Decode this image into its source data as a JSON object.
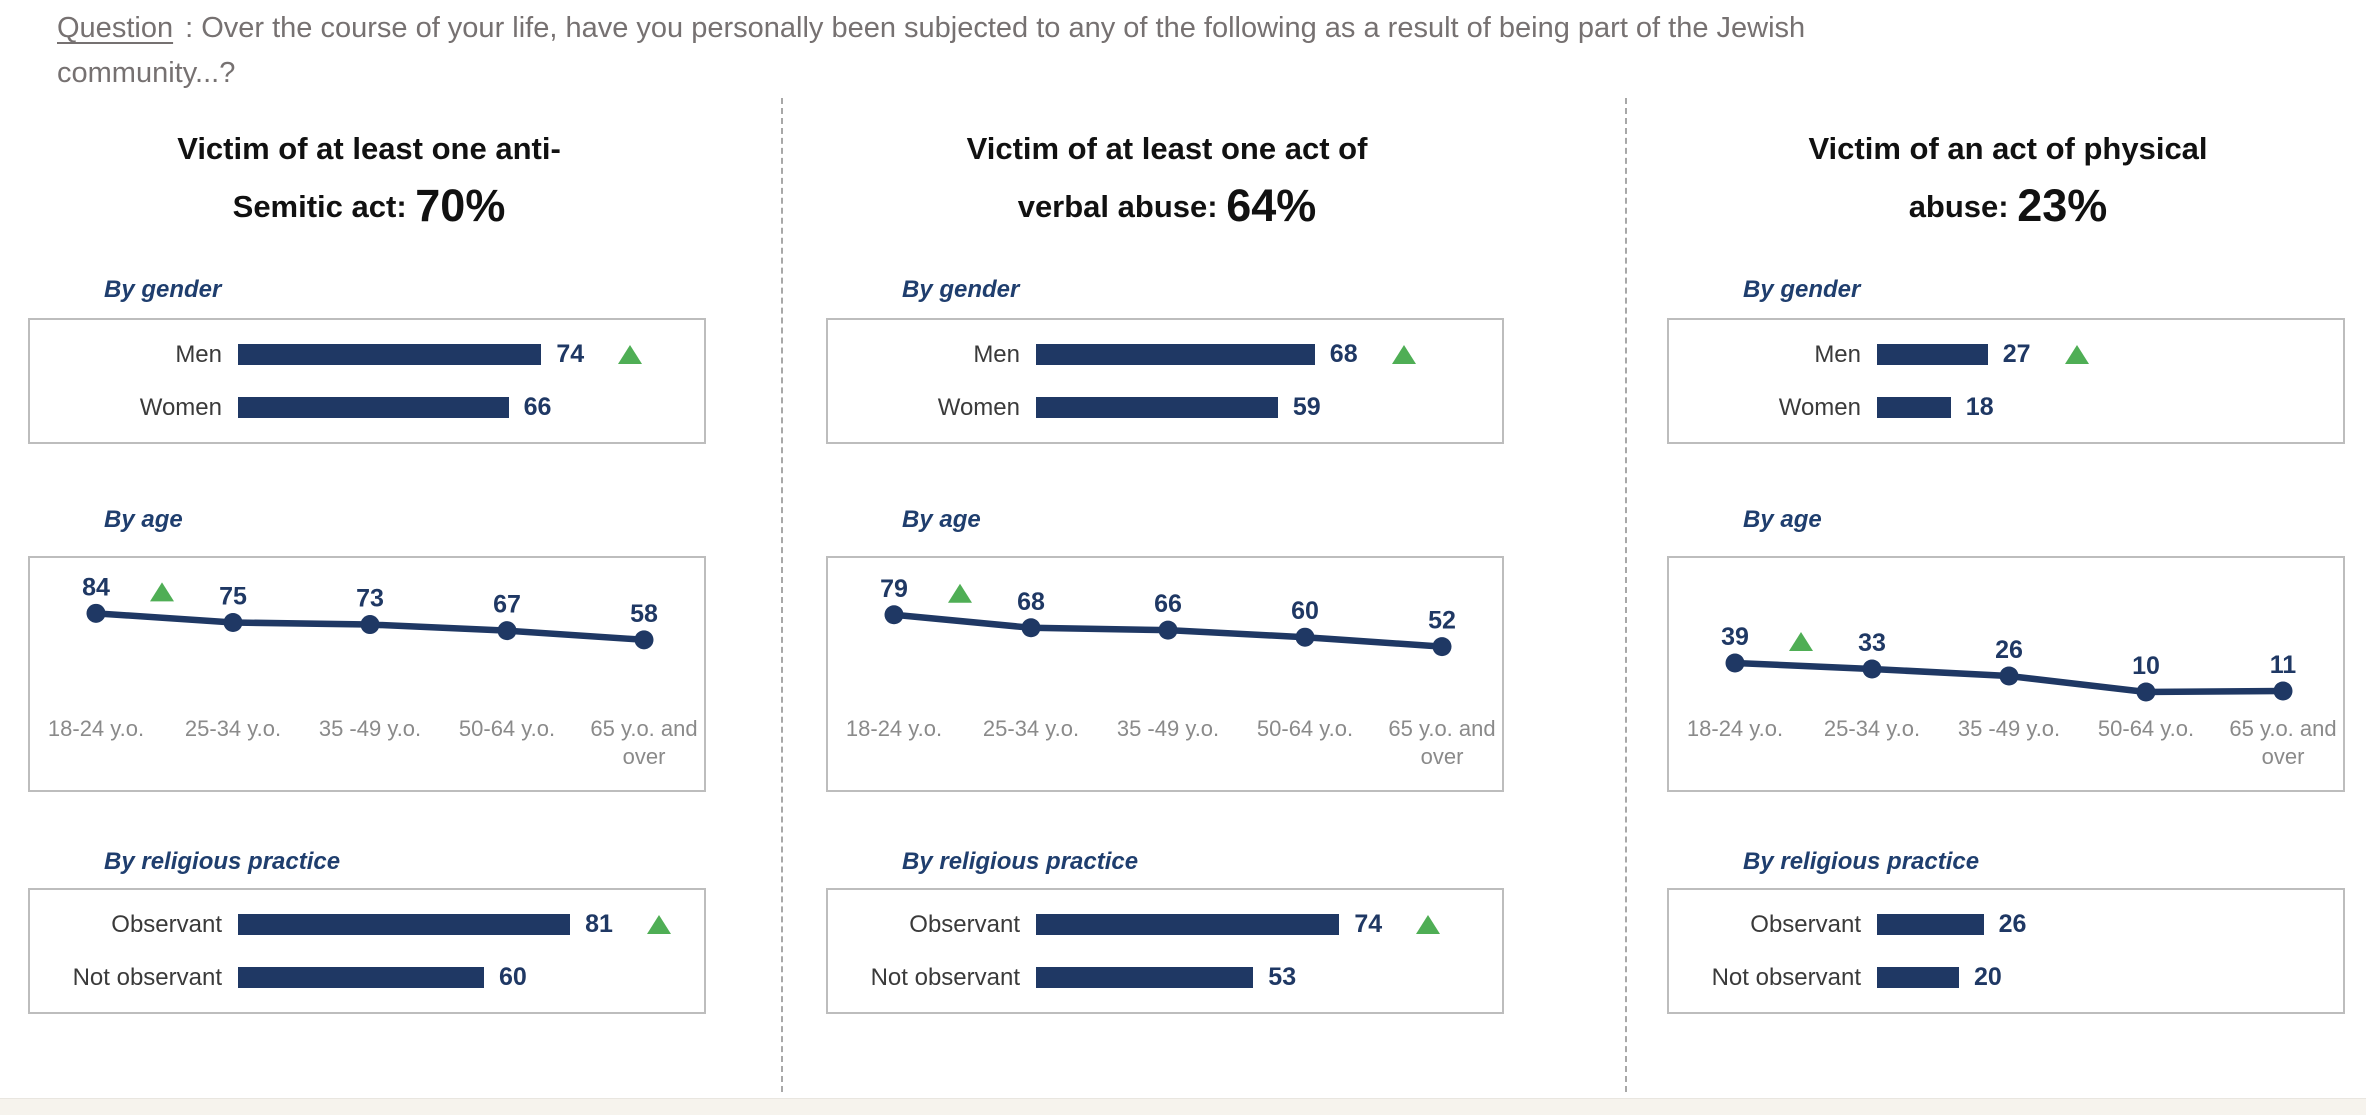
{
  "question": {
    "label": "Question",
    "text": ":  Over the course of your life, have you personally been subjected to any of the following as a result of being part of the Jewish community...?"
  },
  "age_tick_lines": [
    [
      "18-24 y.o."
    ],
    [
      "25-34 y.o."
    ],
    [
      "35 -49 y.o."
    ],
    [
      "50-64 y.o."
    ],
    [
      "65 y.o. and",
      "over"
    ]
  ],
  "colors": {
    "bar_navy": "#1F3864",
    "marker_green": "#4FAE55",
    "box_border": "#BDBDBD",
    "tick_gray": "#8A8A8A",
    "question_gray": "#767171"
  },
  "panels": [
    {
      "title_line1": "Victim of at least one anti-",
      "title_line2": "Semitic act:",
      "title_pct": "70%",
      "by_gender": {
        "heading": "By gender",
        "bars": [
          {
            "label": "Men",
            "value": 74,
            "marker": true
          },
          {
            "label": "Women",
            "value": 66,
            "marker": false
          }
        ]
      },
      "by_age": {
        "heading": "By age",
        "values": [
          84,
          75,
          73,
          67,
          58
        ],
        "marker_on_first": true
      },
      "by_religion": {
        "heading": "By religious practice",
        "bars": [
          {
            "label": "Observant",
            "value": 81,
            "marker": true
          },
          {
            "label": "Not observant",
            "value": 60,
            "marker": false
          }
        ]
      }
    },
    {
      "title_line1": "Victim of at least one act of",
      "title_line2": "verbal abuse:",
      "title_pct": "64%",
      "by_gender": {
        "heading": "By gender",
        "bars": [
          {
            "label": "Men",
            "value": 68,
            "marker": true
          },
          {
            "label": "Women",
            "value": 59,
            "marker": false
          }
        ]
      },
      "by_age": {
        "heading": "By age",
        "values": [
          79,
          68,
          66,
          60,
          52
        ],
        "marker_on_first": true
      },
      "by_religion": {
        "heading": "By religious practice",
        "bars": [
          {
            "label": "Observant",
            "value": 74,
            "marker": true
          },
          {
            "label": "Not observant",
            "value": 53,
            "marker": false
          }
        ]
      }
    },
    {
      "title_line1": "Victim of an act of physical",
      "title_line2": "abuse:",
      "title_pct": "23%",
      "by_gender": {
        "heading": "By gender",
        "bars": [
          {
            "label": "Men",
            "value": 27,
            "marker": true
          },
          {
            "label": "Women",
            "value": 18,
            "marker": false
          }
        ]
      },
      "by_age": {
        "heading": "By age",
        "values": [
          39,
          33,
          26,
          10,
          11
        ],
        "marker_on_first": true
      },
      "by_religion": {
        "heading": "By religious practice",
        "bars": [
          {
            "label": "Observant",
            "value": 26,
            "marker": false
          },
          {
            "label": "Not observant",
            "value": 20,
            "marker": false
          }
        ]
      }
    }
  ],
  "chart_data": [
    {
      "type": "bar",
      "panel": "Victim of at least one anti-Semitic act",
      "panel_total_pct": 70,
      "breakdown": "By gender",
      "categories": [
        "Men",
        "Women"
      ],
      "values": [
        74,
        66
      ],
      "green_triangle_on": [
        "Men"
      ],
      "bar_color": "#1F3864",
      "xlim": [
        0,
        100
      ],
      "orientation": "horizontal",
      "grid": false,
      "legend": "none"
    },
    {
      "type": "line",
      "panel": "Victim of at least one anti-Semitic act",
      "panel_total_pct": 70,
      "breakdown": "By age",
      "categories": [
        "18-24 y.o.",
        "25-34 y.o.",
        "35 -49 y.o.",
        "50-64 y.o.",
        "65 y.o. and over"
      ],
      "values": [
        84,
        75,
        73,
        67,
        58
      ],
      "green_triangle_on": [
        "18-24 y.o."
      ],
      "line_color": "#1F3864",
      "markers": "filled-circles",
      "data_labels": true,
      "grid": false
    },
    {
      "type": "bar",
      "panel": "Victim of at least one anti-Semitic act",
      "panel_total_pct": 70,
      "breakdown": "By religious practice",
      "categories": [
        "Observant",
        "Not observant"
      ],
      "values": [
        81,
        60
      ],
      "green_triangle_on": [
        "Observant"
      ],
      "bar_color": "#1F3864",
      "xlim": [
        0,
        100
      ],
      "orientation": "horizontal",
      "grid": false,
      "legend": "none"
    },
    {
      "type": "bar",
      "panel": "Victim of at least one act of verbal abuse",
      "panel_total_pct": 64,
      "breakdown": "By gender",
      "categories": [
        "Men",
        "Women"
      ],
      "values": [
        68,
        59
      ],
      "green_triangle_on": [
        "Men"
      ],
      "bar_color": "#1F3864",
      "xlim": [
        0,
        100
      ],
      "orientation": "horizontal",
      "grid": false,
      "legend": "none"
    },
    {
      "type": "line",
      "panel": "Victim of at least one act of verbal abuse",
      "panel_total_pct": 64,
      "breakdown": "By age",
      "categories": [
        "18-24 y.o.",
        "25-34 y.o.",
        "35 -49 y.o.",
        "50-64 y.o.",
        "65 y.o. and over"
      ],
      "values": [
        79,
        68,
        66,
        60,
        52
      ],
      "green_triangle_on": [
        "18-24 y.o."
      ],
      "line_color": "#1F3864",
      "markers": "filled-circles",
      "data_labels": true,
      "grid": false
    },
    {
      "type": "bar",
      "panel": "Victim of at least one act of verbal abuse",
      "panel_total_pct": 64,
      "breakdown": "By religious practice",
      "categories": [
        "Observant",
        "Not observant"
      ],
      "values": [
        74,
        53
      ],
      "green_triangle_on": [
        "Observant"
      ],
      "bar_color": "#1F3864",
      "xlim": [
        0,
        100
      ],
      "orientation": "horizontal",
      "grid": false,
      "legend": "none"
    },
    {
      "type": "bar",
      "panel": "Victim of an act of physical abuse",
      "panel_total_pct": 23,
      "breakdown": "By gender",
      "categories": [
        "Men",
        "Women"
      ],
      "values": [
        27,
        18
      ],
      "green_triangle_on": [
        "Men"
      ],
      "bar_color": "#1F3864",
      "xlim": [
        0,
        100
      ],
      "orientation": "horizontal",
      "grid": false,
      "legend": "none"
    },
    {
      "type": "line",
      "panel": "Victim of an act of physical abuse",
      "panel_total_pct": 23,
      "breakdown": "By age",
      "categories": [
        "18-24 y.o.",
        "25-34 y.o.",
        "35 -49 y.o.",
        "50-64 y.o.",
        "65 y.o. and over"
      ],
      "values": [
        39,
        33,
        26,
        10,
        11
      ],
      "green_triangle_on": [
        "18-24 y.o."
      ],
      "line_color": "#1F3864",
      "markers": "filled-circles",
      "data_labels": true,
      "grid": false
    },
    {
      "type": "bar",
      "panel": "Victim of an act of physical abuse",
      "panel_total_pct": 23,
      "breakdown": "By religious practice",
      "categories": [
        "Observant",
        "Not observant"
      ],
      "values": [
        26,
        20
      ],
      "green_triangle_on": [],
      "bar_color": "#1F3864",
      "xlim": [
        0,
        100
      ],
      "orientation": "horizontal",
      "grid": false,
      "legend": "none"
    }
  ]
}
